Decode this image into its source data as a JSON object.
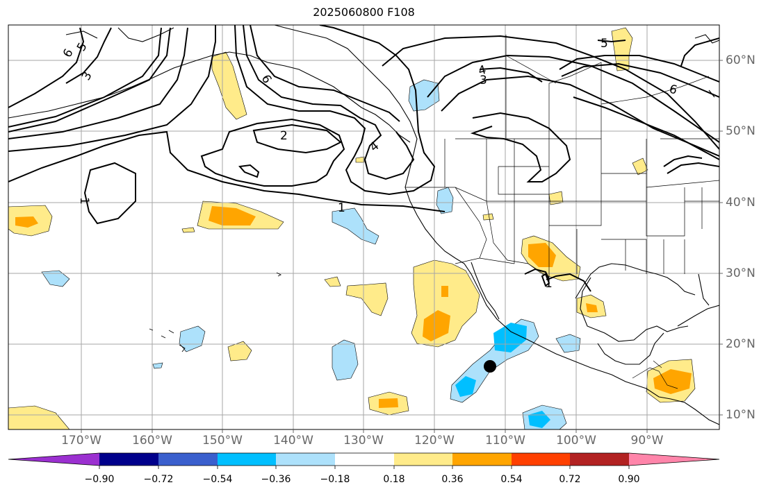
{
  "title": "2025060800 F108",
  "map": {
    "lon_labels": [
      "170°W",
      "160°W",
      "150°W",
      "140°W",
      "130°W",
      "120°W",
      "110°W",
      "100°W",
      "90°W"
    ],
    "lat_labels": [
      "10°N",
      "20°N",
      "30°N",
      "40°N",
      "50°N",
      "60°N"
    ],
    "contour_labels": [
      "6",
      "5",
      "3",
      "6",
      "2",
      "4",
      "4",
      "3",
      "5",
      "6",
      "1",
      "1",
      "1"
    ],
    "marker": "storm-center-dot"
  },
  "colorbar": {
    "tick_labels": [
      "−0.90",
      "−0.72",
      "−0.54",
      "−0.36",
      "−0.18",
      "0.18",
      "0.36",
      "0.54",
      "0.72",
      "0.90"
    ],
    "colors": [
      "#9b30d0",
      "#00008b",
      "#3a5fcd",
      "#00bfff",
      "#ade1fb",
      "#ffffff",
      "#ffeb8a",
      "#ffa500",
      "#ff4000",
      "#b22222",
      "#ff85aa"
    ]
  }
}
